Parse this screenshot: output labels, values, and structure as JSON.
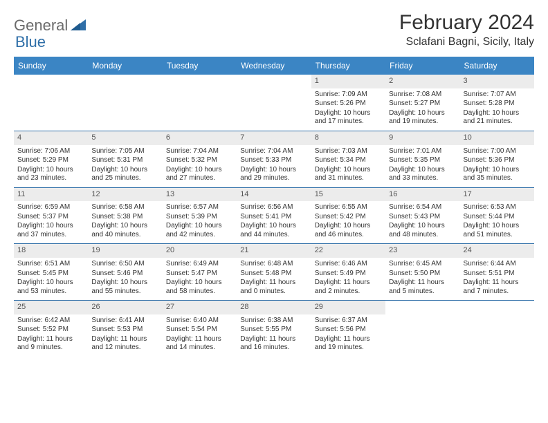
{
  "brand": {
    "part1": "General",
    "part2": "Blue"
  },
  "title": "February 2024",
  "location": "Sclafani Bagni, Sicily, Italy",
  "colors": {
    "header_bg": "#3b85c4",
    "header_text": "#ffffff",
    "row_divider": "#2f6fa8",
    "daynum_bg": "#ececec",
    "text": "#333333",
    "logo_gray": "#6b6b6b",
    "logo_blue": "#2f6fa8"
  },
  "day_names": [
    "Sunday",
    "Monday",
    "Tuesday",
    "Wednesday",
    "Thursday",
    "Friday",
    "Saturday"
  ],
  "weeks": [
    [
      null,
      null,
      null,
      null,
      {
        "n": "1",
        "sunrise": "Sunrise: 7:09 AM",
        "sunset": "Sunset: 5:26 PM",
        "daylight": "Daylight: 10 hours and 17 minutes."
      },
      {
        "n": "2",
        "sunrise": "Sunrise: 7:08 AM",
        "sunset": "Sunset: 5:27 PM",
        "daylight": "Daylight: 10 hours and 19 minutes."
      },
      {
        "n": "3",
        "sunrise": "Sunrise: 7:07 AM",
        "sunset": "Sunset: 5:28 PM",
        "daylight": "Daylight: 10 hours and 21 minutes."
      }
    ],
    [
      {
        "n": "4",
        "sunrise": "Sunrise: 7:06 AM",
        "sunset": "Sunset: 5:29 PM",
        "daylight": "Daylight: 10 hours and 23 minutes."
      },
      {
        "n": "5",
        "sunrise": "Sunrise: 7:05 AM",
        "sunset": "Sunset: 5:31 PM",
        "daylight": "Daylight: 10 hours and 25 minutes."
      },
      {
        "n": "6",
        "sunrise": "Sunrise: 7:04 AM",
        "sunset": "Sunset: 5:32 PM",
        "daylight": "Daylight: 10 hours and 27 minutes."
      },
      {
        "n": "7",
        "sunrise": "Sunrise: 7:04 AM",
        "sunset": "Sunset: 5:33 PM",
        "daylight": "Daylight: 10 hours and 29 minutes."
      },
      {
        "n": "8",
        "sunrise": "Sunrise: 7:03 AM",
        "sunset": "Sunset: 5:34 PM",
        "daylight": "Daylight: 10 hours and 31 minutes."
      },
      {
        "n": "9",
        "sunrise": "Sunrise: 7:01 AM",
        "sunset": "Sunset: 5:35 PM",
        "daylight": "Daylight: 10 hours and 33 minutes."
      },
      {
        "n": "10",
        "sunrise": "Sunrise: 7:00 AM",
        "sunset": "Sunset: 5:36 PM",
        "daylight": "Daylight: 10 hours and 35 minutes."
      }
    ],
    [
      {
        "n": "11",
        "sunrise": "Sunrise: 6:59 AM",
        "sunset": "Sunset: 5:37 PM",
        "daylight": "Daylight: 10 hours and 37 minutes."
      },
      {
        "n": "12",
        "sunrise": "Sunrise: 6:58 AM",
        "sunset": "Sunset: 5:38 PM",
        "daylight": "Daylight: 10 hours and 40 minutes."
      },
      {
        "n": "13",
        "sunrise": "Sunrise: 6:57 AM",
        "sunset": "Sunset: 5:39 PM",
        "daylight": "Daylight: 10 hours and 42 minutes."
      },
      {
        "n": "14",
        "sunrise": "Sunrise: 6:56 AM",
        "sunset": "Sunset: 5:41 PM",
        "daylight": "Daylight: 10 hours and 44 minutes."
      },
      {
        "n": "15",
        "sunrise": "Sunrise: 6:55 AM",
        "sunset": "Sunset: 5:42 PM",
        "daylight": "Daylight: 10 hours and 46 minutes."
      },
      {
        "n": "16",
        "sunrise": "Sunrise: 6:54 AM",
        "sunset": "Sunset: 5:43 PM",
        "daylight": "Daylight: 10 hours and 48 minutes."
      },
      {
        "n": "17",
        "sunrise": "Sunrise: 6:53 AM",
        "sunset": "Sunset: 5:44 PM",
        "daylight": "Daylight: 10 hours and 51 minutes."
      }
    ],
    [
      {
        "n": "18",
        "sunrise": "Sunrise: 6:51 AM",
        "sunset": "Sunset: 5:45 PM",
        "daylight": "Daylight: 10 hours and 53 minutes."
      },
      {
        "n": "19",
        "sunrise": "Sunrise: 6:50 AM",
        "sunset": "Sunset: 5:46 PM",
        "daylight": "Daylight: 10 hours and 55 minutes."
      },
      {
        "n": "20",
        "sunrise": "Sunrise: 6:49 AM",
        "sunset": "Sunset: 5:47 PM",
        "daylight": "Daylight: 10 hours and 58 minutes."
      },
      {
        "n": "21",
        "sunrise": "Sunrise: 6:48 AM",
        "sunset": "Sunset: 5:48 PM",
        "daylight": "Daylight: 11 hours and 0 minutes."
      },
      {
        "n": "22",
        "sunrise": "Sunrise: 6:46 AM",
        "sunset": "Sunset: 5:49 PM",
        "daylight": "Daylight: 11 hours and 2 minutes."
      },
      {
        "n": "23",
        "sunrise": "Sunrise: 6:45 AM",
        "sunset": "Sunset: 5:50 PM",
        "daylight": "Daylight: 11 hours and 5 minutes."
      },
      {
        "n": "24",
        "sunrise": "Sunrise: 6:44 AM",
        "sunset": "Sunset: 5:51 PM",
        "daylight": "Daylight: 11 hours and 7 minutes."
      }
    ],
    [
      {
        "n": "25",
        "sunrise": "Sunrise: 6:42 AM",
        "sunset": "Sunset: 5:52 PM",
        "daylight": "Daylight: 11 hours and 9 minutes."
      },
      {
        "n": "26",
        "sunrise": "Sunrise: 6:41 AM",
        "sunset": "Sunset: 5:53 PM",
        "daylight": "Daylight: 11 hours and 12 minutes."
      },
      {
        "n": "27",
        "sunrise": "Sunrise: 6:40 AM",
        "sunset": "Sunset: 5:54 PM",
        "daylight": "Daylight: 11 hours and 14 minutes."
      },
      {
        "n": "28",
        "sunrise": "Sunrise: 6:38 AM",
        "sunset": "Sunset: 5:55 PM",
        "daylight": "Daylight: 11 hours and 16 minutes."
      },
      {
        "n": "29",
        "sunrise": "Sunrise: 6:37 AM",
        "sunset": "Sunset: 5:56 PM",
        "daylight": "Daylight: 11 hours and 19 minutes."
      },
      null,
      null
    ]
  ]
}
